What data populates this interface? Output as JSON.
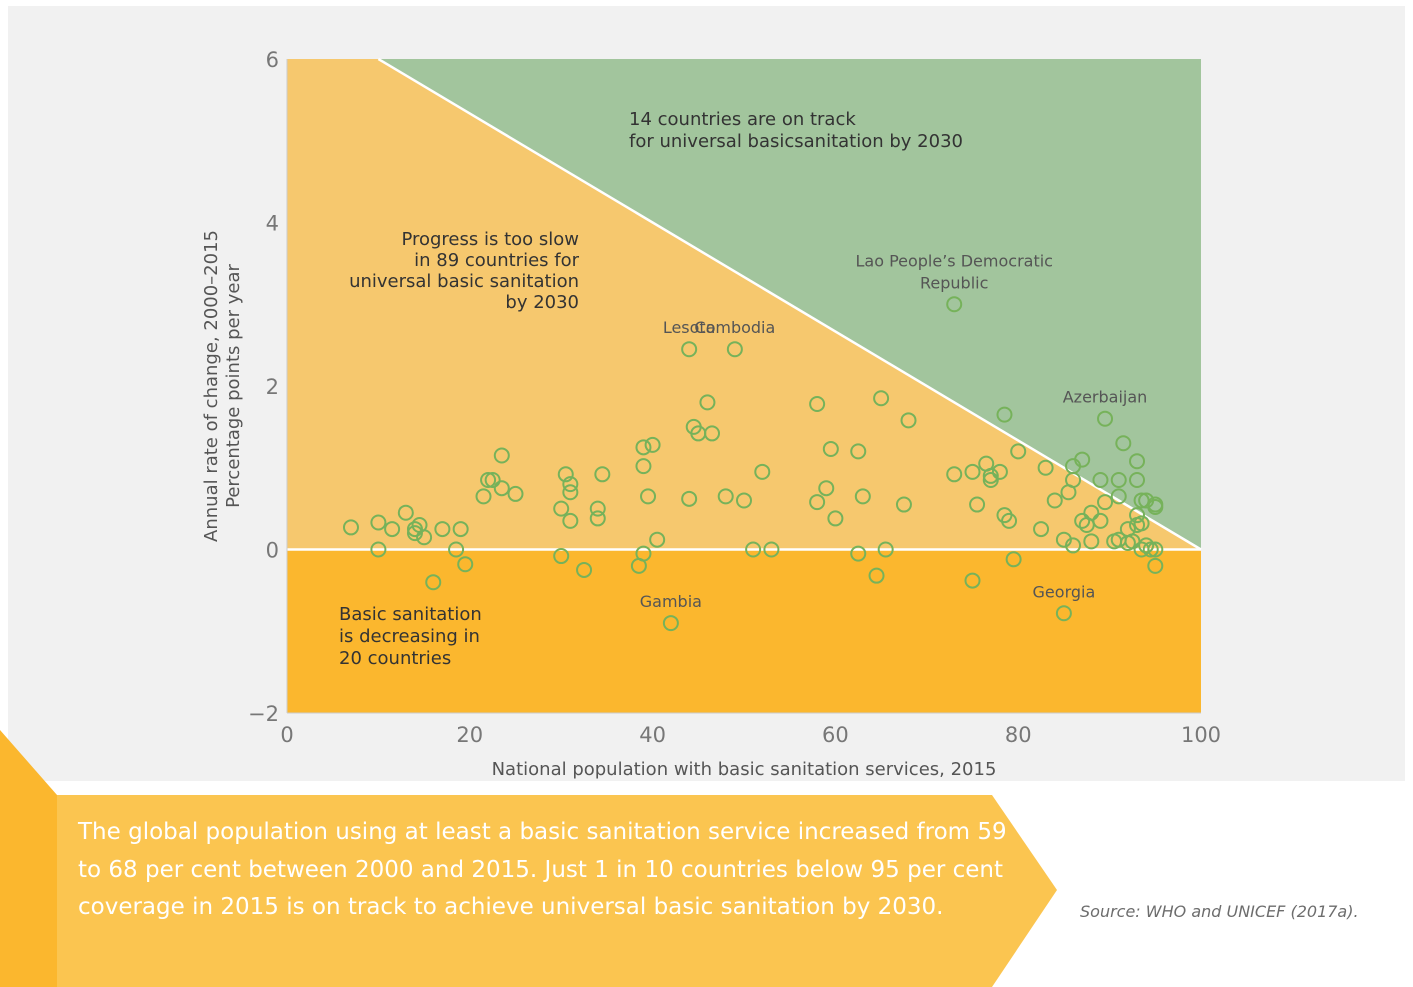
{
  "chart_data": {
    "type": "scatter",
    "xlabel": "National population with basic sanitation services, 2015",
    "ylabel": [
      "Annual rate of change, 2000–2015",
      "Percentage points per year"
    ],
    "xlim": [
      0,
      100
    ],
    "ylim": [
      -2,
      6
    ],
    "x_ticks": [
      "0",
      "20",
      "40",
      "60",
      "80",
      "100"
    ],
    "y_ticks": [
      "−2",
      "0",
      "2",
      "4",
      "6"
    ],
    "regions": {
      "on_track": {
        "text": [
          "14 countries are on track",
          "for universal basicsanitation by 2030"
        ],
        "color": "#a2c59d"
      },
      "too_slow": {
        "text": [
          "Progress is too slow",
          "in 89 countries for",
          "universal basic sanitation",
          "by 2030"
        ],
        "color": "#f6c86e"
      },
      "decreasing": {
        "text": [
          "Basic sanitation",
          "is decreasing in",
          "20 countries"
        ],
        "color": "#fbb72e"
      }
    },
    "marker_color": "#76b25a",
    "labeled_points": [
      {
        "name": [
          "Lesoto"
        ],
        "x": 44,
        "y": 2.45
      },
      {
        "name": [
          "Cambodia"
        ],
        "x": 49,
        "y": 2.45
      },
      {
        "name": [
          "Lao People’s Democratic",
          "Republic"
        ],
        "x": 73,
        "y": 3.0
      },
      {
        "name": [
          "Azerbaijan"
        ],
        "x": 89.5,
        "y": 1.6
      },
      {
        "name": [
          "Gambia"
        ],
        "x": 42,
        "y": -0.9
      },
      {
        "name": [
          "Georgia"
        ],
        "x": 85,
        "y": -0.78
      }
    ],
    "points": [
      [
        7,
        0.27
      ],
      [
        10,
        0.33
      ],
      [
        10,
        0
      ],
      [
        11.5,
        0.25
      ],
      [
        13,
        0.45
      ],
      [
        14,
        0.25
      ],
      [
        14,
        0.2
      ],
      [
        14.5,
        0.3
      ],
      [
        15,
        0.15
      ],
      [
        16,
        -0.4
      ],
      [
        17,
        0.25
      ],
      [
        18.5,
        0
      ],
      [
        19,
        0.25
      ],
      [
        19.5,
        -0.18
      ],
      [
        21.5,
        0.65
      ],
      [
        22,
        0.85
      ],
      [
        22.5,
        0.85
      ],
      [
        23.5,
        1.15
      ],
      [
        23.5,
        0.75
      ],
      [
        25,
        0.68
      ],
      [
        30,
        0.5
      ],
      [
        30,
        -0.08
      ],
      [
        30.5,
        0.92
      ],
      [
        31,
        0.35
      ],
      [
        31,
        0.8
      ],
      [
        31,
        0.7
      ],
      [
        32.5,
        -0.25
      ],
      [
        34,
        0.5
      ],
      [
        34,
        0.38
      ],
      [
        34.5,
        0.92
      ],
      [
        38.5,
        -0.2
      ],
      [
        39,
        -0.05
      ],
      [
        39,
        1.02
      ],
      [
        39,
        1.25
      ],
      [
        39.5,
        0.65
      ],
      [
        40,
        1.28
      ],
      [
        40.5,
        0.12
      ],
      [
        44,
        0.62
      ],
      [
        44.5,
        1.5
      ],
      [
        45,
        1.42
      ],
      [
        46,
        1.8
      ],
      [
        46.5,
        1.42
      ],
      [
        48,
        0.65
      ],
      [
        50,
        0.6
      ],
      [
        51,
        0
      ],
      [
        52,
        0.95
      ],
      [
        53,
        0
      ],
      [
        58,
        1.78
      ],
      [
        58,
        0.58
      ],
      [
        59,
        0.75
      ],
      [
        59.5,
        1.23
      ],
      [
        60,
        0.38
      ],
      [
        62.5,
        1.2
      ],
      [
        62.5,
        -0.05
      ],
      [
        63,
        0.65
      ],
      [
        64.5,
        -0.32
      ],
      [
        65,
        1.85
      ],
      [
        65.5,
        0
      ],
      [
        67.5,
        0.55
      ],
      [
        68,
        1.58
      ],
      [
        73,
        0.92
      ],
      [
        75,
        -0.38
      ],
      [
        75,
        0.95
      ],
      [
        75.5,
        0.55
      ],
      [
        76.5,
        1.05
      ],
      [
        77,
        0.9
      ],
      [
        77,
        0.85
      ],
      [
        78,
        0.95
      ],
      [
        78.5,
        1.65
      ],
      [
        78.5,
        0.42
      ],
      [
        79,
        0.35
      ],
      [
        79.5,
        -0.12
      ],
      [
        80,
        1.2
      ],
      [
        82.5,
        0.25
      ],
      [
        83,
        1.0
      ],
      [
        84,
        0.6
      ],
      [
        85,
        0.12
      ],
      [
        85.5,
        0.7
      ],
      [
        86,
        0.05
      ],
      [
        86,
        1.02
      ],
      [
        86,
        0.85
      ],
      [
        87,
        0.35
      ],
      [
        87,
        1.1
      ],
      [
        87.5,
        0.3
      ],
      [
        88,
        0.45
      ],
      [
        88,
        0.1
      ],
      [
        89,
        0.35
      ],
      [
        89,
        0.85
      ],
      [
        89.5,
        0.58
      ],
      [
        90.5,
        0.1
      ],
      [
        91,
        0.85
      ],
      [
        91,
        0.65
      ],
      [
        91,
        0.12
      ],
      [
        91.5,
        1.3
      ],
      [
        92,
        0.08
      ],
      [
        92,
        0.25
      ],
      [
        92.5,
        0.1
      ],
      [
        93,
        0.3
      ],
      [
        93,
        0.42
      ],
      [
        93,
        1.08
      ],
      [
        93,
        0.85
      ],
      [
        93.5,
        0.6
      ],
      [
        93.5,
        0
      ],
      [
        93.5,
        0.32
      ],
      [
        94,
        0.6
      ],
      [
        94,
        0.05
      ],
      [
        94.5,
        0
      ],
      [
        95,
        0.55
      ],
      [
        95,
        0
      ],
      [
        95,
        -0.2
      ],
      [
        95,
        0.52
      ]
    ]
  },
  "caption": "The global population using at least a basic sanitation service increased from 59 to 68 per cent between 2000 and 2015. Just 1 in 10 countries below 95 per cent coverage in 2015 is on track to achieve universal basic sanitation by 2030.",
  "source": "Source: WHO and UNICEF (2017a).",
  "colors": {
    "caption_box": "#fbc550",
    "caption_chevron": "#fbb72e",
    "panel_bg": "#f1f1f1"
  }
}
